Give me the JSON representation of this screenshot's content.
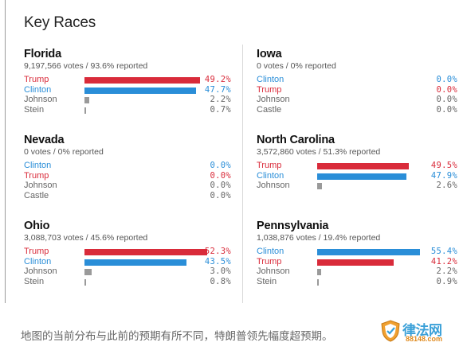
{
  "panel": {
    "title": "Key Races"
  },
  "races": [
    {
      "state": "Florida",
      "meta": "9,197,566 votes / 93.6% reported",
      "candidates": [
        {
          "name": "Trump",
          "pct": "49.2%",
          "share": 49.2,
          "party": "trump"
        },
        {
          "name": "Clinton",
          "pct": "47.7%",
          "share": 47.7,
          "party": "clinton"
        },
        {
          "name": "Johnson",
          "pct": "2.2%",
          "share": 2.2,
          "party": "other"
        },
        {
          "name": "Stein",
          "pct": "0.7%",
          "share": 0.7,
          "party": "other"
        }
      ]
    },
    {
      "state": "Iowa",
      "meta": "0 votes / 0% reported",
      "candidates": [
        {
          "name": "Clinton",
          "pct": "0.0%",
          "share": 0,
          "party": "clinton"
        },
        {
          "name": "Trump",
          "pct": "0.0%",
          "share": 0,
          "party": "trump"
        },
        {
          "name": "Johnson",
          "pct": "0.0%",
          "share": 0,
          "party": "other"
        },
        {
          "name": "Castle",
          "pct": "0.0%",
          "share": 0,
          "party": "other"
        }
      ]
    },
    {
      "state": "Nevada",
      "meta": "0 votes / 0% reported",
      "candidates": [
        {
          "name": "Clinton",
          "pct": "0.0%",
          "share": 0,
          "party": "clinton"
        },
        {
          "name": "Trump",
          "pct": "0.0%",
          "share": 0,
          "party": "trump"
        },
        {
          "name": "Johnson",
          "pct": "0.0%",
          "share": 0,
          "party": "other"
        },
        {
          "name": "Castle",
          "pct": "0.0%",
          "share": 0,
          "party": "other"
        }
      ]
    },
    {
      "state": "North Carolina",
      "meta": "3,572,860 votes / 51.3% reported",
      "candidates": [
        {
          "name": "Trump",
          "pct": "49.5%",
          "share": 49.5,
          "party": "trump"
        },
        {
          "name": "Clinton",
          "pct": "47.9%",
          "share": 47.9,
          "party": "clinton"
        },
        {
          "name": "Johnson",
          "pct": "2.6%",
          "share": 2.6,
          "party": "other"
        }
      ]
    },
    {
      "state": "Ohio",
      "meta": "3,088,703 votes / 45.6% reported",
      "candidates": [
        {
          "name": "Trump",
          "pct": "52.3%",
          "share": 52.3,
          "party": "trump"
        },
        {
          "name": "Clinton",
          "pct": "43.5%",
          "share": 43.5,
          "party": "clinton"
        },
        {
          "name": "Johnson",
          "pct": "3.0%",
          "share": 3.0,
          "party": "other"
        },
        {
          "name": "Stein",
          "pct": "0.8%",
          "share": 0.8,
          "party": "other"
        }
      ]
    },
    {
      "state": "Pennsylvania",
      "meta": "1,038,876 votes / 19.4% reported",
      "candidates": [
        {
          "name": "Clinton",
          "pct": "55.4%",
          "share": 55.4,
          "party": "clinton"
        },
        {
          "name": "Trump",
          "pct": "41.2%",
          "share": 41.2,
          "party": "trump"
        },
        {
          "name": "Johnson",
          "pct": "2.2%",
          "share": 2.2,
          "party": "other"
        },
        {
          "name": "Stein",
          "pct": "0.9%",
          "share": 0.9,
          "party": "other"
        }
      ]
    }
  ],
  "caption": "地图的当前分布与此前的预期有所不同，特朗普领先幅度超预期。",
  "watermark": {
    "text": "律法网",
    "sub": "88148.com",
    "icon": "shield-icon"
  },
  "colors": {
    "trump": "#d92b3a",
    "clinton": "#2a8ed8",
    "other": "#9a9a9a"
  }
}
